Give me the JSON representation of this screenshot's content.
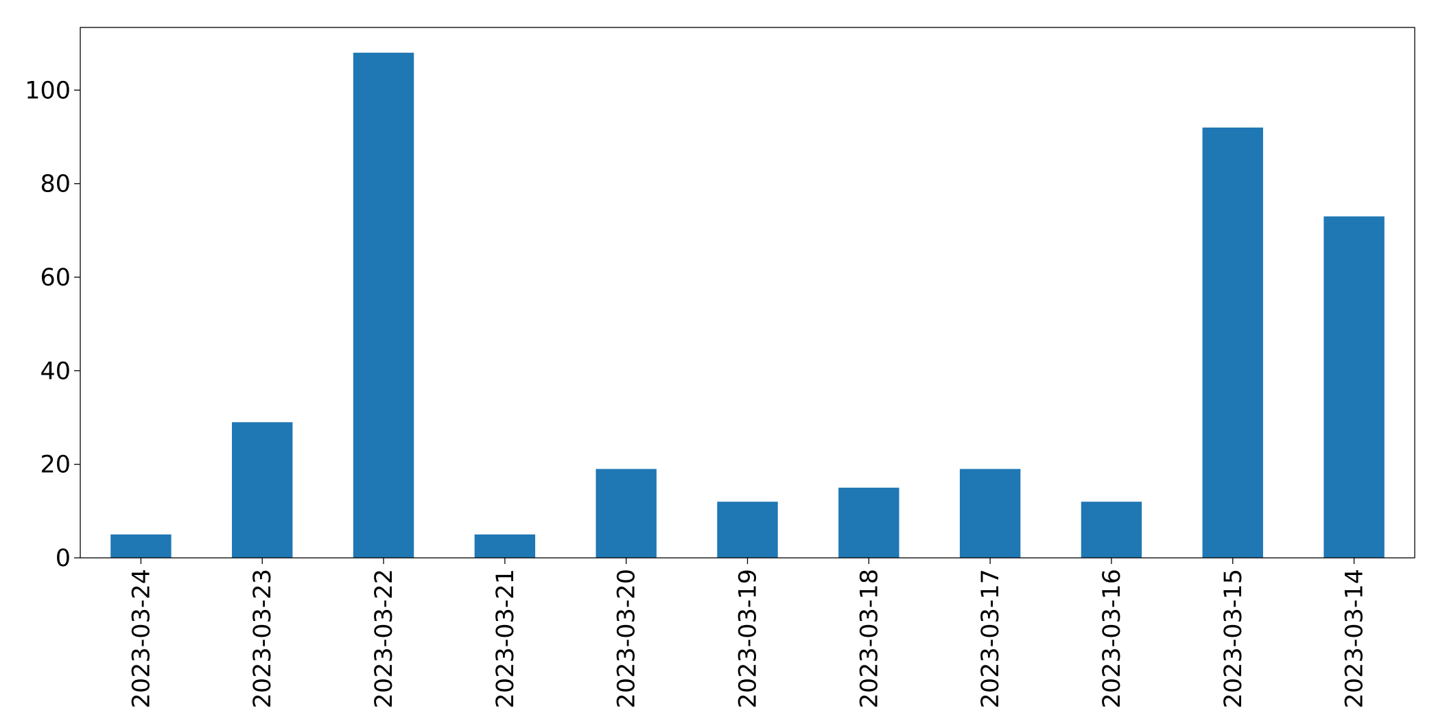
{
  "chart_data": {
    "type": "bar",
    "categories": [
      "2023-03-24",
      "2023-03-23",
      "2023-03-22",
      "2023-03-21",
      "2023-03-20",
      "2023-03-19",
      "2023-03-18",
      "2023-03-17",
      "2023-03-16",
      "2023-03-15",
      "2023-03-14"
    ],
    "values": [
      5,
      29,
      108,
      5,
      19,
      12,
      15,
      19,
      12,
      92,
      73
    ],
    "color": "#1f77b4",
    "ylim": [
      0,
      113.4
    ],
    "yticks": [
      0,
      20,
      40,
      60,
      80,
      100
    ],
    "grid": false
  }
}
